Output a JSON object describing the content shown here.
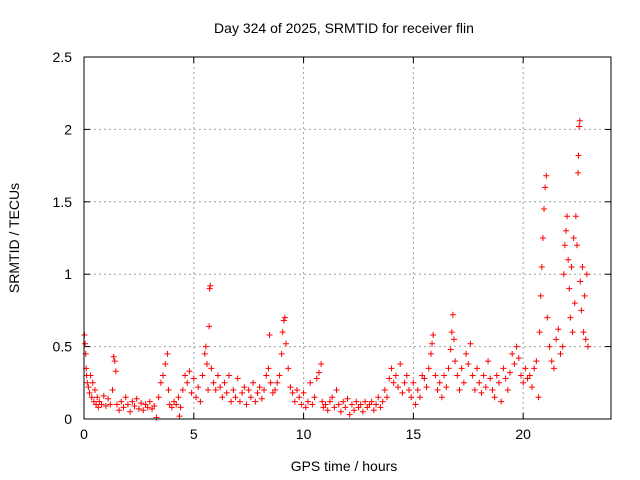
{
  "chart_data": {
    "type": "scatter",
    "title": "Day 324 of 2025, SRMTID for receiver flin",
    "xlabel": "GPS time / hours",
    "ylabel": "SRMTID / TECUs",
    "xlim": [
      0,
      24
    ],
    "ylim": [
      0,
      2.5
    ],
    "x_ticks": [
      {
        "value": 0,
        "label": "0"
      },
      {
        "value": 5,
        "label": "5"
      },
      {
        "value": 10,
        "label": "10"
      },
      {
        "value": 15,
        "label": "15"
      },
      {
        "value": 20,
        "label": "20"
      }
    ],
    "y_ticks": [
      {
        "value": 0,
        "label": "0"
      },
      {
        "value": 0.5,
        "label": "0.5"
      },
      {
        "value": 1,
        "label": "1"
      },
      {
        "value": 1.5,
        "label": "1.5"
      },
      {
        "value": 2,
        "label": "2"
      },
      {
        "value": 2.5,
        "label": "2.5"
      }
    ],
    "grid": true,
    "marker": "+",
    "color": "#ff0000",
    "series": [
      {
        "name": "SRMTID",
        "points": [
          [
            0.02,
            0.58
          ],
          [
            0.05,
            0.52
          ],
          [
            0.08,
            0.45
          ],
          [
            0.1,
            0.35
          ],
          [
            0.12,
            0.3
          ],
          [
            0.15,
            0.25
          ],
          [
            0.2,
            0.22
          ],
          [
            0.25,
            0.18
          ],
          [
            0.3,
            0.3
          ],
          [
            0.35,
            0.15
          ],
          [
            0.4,
            0.25
          ],
          [
            0.45,
            0.12
          ],
          [
            0.5,
            0.2
          ],
          [
            0.55,
            0.1
          ],
          [
            0.6,
            0.15
          ],
          [
            0.65,
            0.08
          ],
          [
            0.7,
            0.12
          ],
          [
            0.8,
            0.1
          ],
          [
            0.9,
            0.16
          ],
          [
            1.0,
            0.09
          ],
          [
            1.1,
            0.14
          ],
          [
            1.2,
            0.1
          ],
          [
            1.3,
            0.2
          ],
          [
            1.35,
            0.43
          ],
          [
            1.4,
            0.4
          ],
          [
            1.45,
            0.33
          ],
          [
            1.5,
            0.1
          ],
          [
            1.6,
            0.06
          ],
          [
            1.7,
            0.12
          ],
          [
            1.8,
            0.08
          ],
          [
            1.9,
            0.15
          ],
          [
            2.0,
            0.1
          ],
          [
            2.1,
            0.05
          ],
          [
            2.2,
            0.12
          ],
          [
            2.3,
            0.09
          ],
          [
            2.4,
            0.14
          ],
          [
            2.5,
            0.07
          ],
          [
            2.6,
            0.11
          ],
          [
            2.7,
            0.06
          ],
          [
            2.8,
            0.1
          ],
          [
            2.9,
            0.08
          ],
          [
            3.0,
            0.12
          ],
          [
            3.1,
            0.07
          ],
          [
            3.2,
            0.09
          ],
          [
            3.3,
            0.01
          ],
          [
            3.4,
            0.15
          ],
          [
            3.5,
            0.25
          ],
          [
            3.6,
            0.3
          ],
          [
            3.7,
            0.38
          ],
          [
            3.8,
            0.45
          ],
          [
            3.85,
            0.2
          ],
          [
            3.9,
            0.1
          ],
          [
            4.0,
            0.08
          ],
          [
            4.1,
            0.12
          ],
          [
            4.2,
            0.1
          ],
          [
            4.3,
            0.15
          ],
          [
            4.35,
            0.02
          ],
          [
            4.4,
            0.08
          ],
          [
            4.5,
            0.2
          ],
          [
            4.6,
            0.3
          ],
          [
            4.7,
            0.25
          ],
          [
            4.8,
            0.33
          ],
          [
            4.9,
            0.18
          ],
          [
            5.0,
            0.28
          ],
          [
            5.1,
            0.15
          ],
          [
            5.2,
            0.22
          ],
          [
            5.3,
            0.12
          ],
          [
            5.4,
            0.3
          ],
          [
            5.5,
            0.45
          ],
          [
            5.55,
            0.5
          ],
          [
            5.6,
            0.38
          ],
          [
            5.65,
            0.2
          ],
          [
            5.7,
            0.64
          ],
          [
            5.72,
            0.9
          ],
          [
            5.75,
            0.92
          ],
          [
            5.8,
            0.35
          ],
          [
            5.9,
            0.25
          ],
          [
            6.0,
            0.2
          ],
          [
            6.1,
            0.3
          ],
          [
            6.2,
            0.22
          ],
          [
            6.3,
            0.15
          ],
          [
            6.4,
            0.25
          ],
          [
            6.5,
            0.18
          ],
          [
            6.6,
            0.3
          ],
          [
            6.7,
            0.12
          ],
          [
            6.8,
            0.2
          ],
          [
            6.9,
            0.15
          ],
          [
            7.0,
            0.28
          ],
          [
            7.1,
            0.12
          ],
          [
            7.2,
            0.18
          ],
          [
            7.3,
            0.22
          ],
          [
            7.4,
            0.1
          ],
          [
            7.5,
            0.2
          ],
          [
            7.6,
            0.15
          ],
          [
            7.7,
            0.25
          ],
          [
            7.8,
            0.12
          ],
          [
            7.9,
            0.18
          ],
          [
            8.0,
            0.22
          ],
          [
            8.1,
            0.14
          ],
          [
            8.2,
            0.2
          ],
          [
            8.3,
            0.3
          ],
          [
            8.4,
            0.35
          ],
          [
            8.45,
            0.58
          ],
          [
            8.5,
            0.25
          ],
          [
            8.6,
            0.18
          ],
          [
            8.7,
            0.2
          ],
          [
            8.8,
            0.25
          ],
          [
            8.9,
            0.3
          ],
          [
            9.0,
            0.45
          ],
          [
            9.05,
            0.6
          ],
          [
            9.1,
            0.68
          ],
          [
            9.15,
            0.7
          ],
          [
            9.2,
            0.52
          ],
          [
            9.3,
            0.35
          ],
          [
            9.4,
            0.22
          ],
          [
            9.5,
            0.18
          ],
          [
            9.6,
            0.12
          ],
          [
            9.7,
            0.2
          ],
          [
            9.8,
            0.15
          ],
          [
            9.9,
            0.1
          ],
          [
            10.0,
            0.18
          ],
          [
            10.1,
            0.08
          ],
          [
            10.2,
            0.12
          ],
          [
            10.3,
            0.25
          ],
          [
            10.4,
            0.1
          ],
          [
            10.5,
            0.15
          ],
          [
            10.6,
            0.28
          ],
          [
            10.7,
            0.32
          ],
          [
            10.8,
            0.38
          ],
          [
            10.85,
            0.12
          ],
          [
            10.9,
            0.08
          ],
          [
            11.0,
            0.1
          ],
          [
            11.1,
            0.06
          ],
          [
            11.2,
            0.12
          ],
          [
            11.3,
            0.15
          ],
          [
            11.4,
            0.08
          ],
          [
            11.5,
            0.2
          ],
          [
            11.6,
            0.1
          ],
          [
            11.7,
            0.05
          ],
          [
            11.8,
            0.12
          ],
          [
            11.9,
            0.08
          ],
          [
            12.0,
            0.14
          ],
          [
            12.1,
            0.03
          ],
          [
            12.2,
            0.1
          ],
          [
            12.3,
            0.06
          ],
          [
            12.4,
            0.12
          ],
          [
            12.5,
            0.08
          ],
          [
            12.6,
            0.1
          ],
          [
            12.7,
            0.05
          ],
          [
            12.8,
            0.12
          ],
          [
            12.9,
            0.08
          ],
          [
            13.0,
            0.1
          ],
          [
            13.1,
            0.12
          ],
          [
            13.2,
            0.06
          ],
          [
            13.3,
            0.1
          ],
          [
            13.4,
            0.15
          ],
          [
            13.5,
            0.08
          ],
          [
            13.6,
            0.12
          ],
          [
            13.7,
            0.2
          ],
          [
            13.8,
            0.15
          ],
          [
            13.9,
            0.28
          ],
          [
            14.0,
            0.35
          ],
          [
            14.1,
            0.25
          ],
          [
            14.2,
            0.3
          ],
          [
            14.3,
            0.22
          ],
          [
            14.4,
            0.38
          ],
          [
            14.5,
            0.18
          ],
          [
            14.6,
            0.25
          ],
          [
            14.7,
            0.3
          ],
          [
            14.8,
            0.2
          ],
          [
            14.9,
            0.15
          ],
          [
            15.0,
            0.25
          ],
          [
            15.1,
            0.1
          ],
          [
            15.2,
            0.2
          ],
          [
            15.3,
            0.15
          ],
          [
            15.4,
            0.3
          ],
          [
            15.5,
            0.28
          ],
          [
            15.6,
            0.22
          ],
          [
            15.7,
            0.35
          ],
          [
            15.8,
            0.45
          ],
          [
            15.85,
            0.52
          ],
          [
            15.9,
            0.58
          ],
          [
            16.0,
            0.3
          ],
          [
            16.1,
            0.2
          ],
          [
            16.2,
            0.25
          ],
          [
            16.3,
            0.15
          ],
          [
            16.4,
            0.3
          ],
          [
            16.5,
            0.22
          ],
          [
            16.6,
            0.35
          ],
          [
            16.7,
            0.48
          ],
          [
            16.75,
            0.6
          ],
          [
            16.8,
            0.72
          ],
          [
            16.85,
            0.55
          ],
          [
            16.9,
            0.4
          ],
          [
            17.0,
            0.3
          ],
          [
            17.1,
            0.2
          ],
          [
            17.2,
            0.35
          ],
          [
            17.3,
            0.25
          ],
          [
            17.4,
            0.45
          ],
          [
            17.5,
            0.38
          ],
          [
            17.6,
            0.52
          ],
          [
            17.7,
            0.3
          ],
          [
            17.8,
            0.2
          ],
          [
            17.9,
            0.35
          ],
          [
            18.0,
            0.25
          ],
          [
            18.1,
            0.18
          ],
          [
            18.2,
            0.3
          ],
          [
            18.3,
            0.22
          ],
          [
            18.4,
            0.4
          ],
          [
            18.5,
            0.28
          ],
          [
            18.6,
            0.2
          ],
          [
            18.7,
            0.15
          ],
          [
            18.8,
            0.3
          ],
          [
            18.9,
            0.25
          ],
          [
            19.0,
            0.12
          ],
          [
            19.1,
            0.35
          ],
          [
            19.2,
            0.28
          ],
          [
            19.3,
            0.2
          ],
          [
            19.4,
            0.32
          ],
          [
            19.5,
            0.45
          ],
          [
            19.6,
            0.38
          ],
          [
            19.7,
            0.5
          ],
          [
            19.8,
            0.42
          ],
          [
            19.9,
            0.3
          ],
          [
            20.0,
            0.25
          ],
          [
            20.1,
            0.35
          ],
          [
            20.2,
            0.28
          ],
          [
            20.3,
            0.3
          ],
          [
            20.4,
            0.22
          ],
          [
            20.5,
            0.35
          ],
          [
            20.6,
            0.4
          ],
          [
            20.7,
            0.15
          ],
          [
            20.75,
            0.6
          ],
          [
            20.8,
            0.85
          ],
          [
            20.85,
            1.05
          ],
          [
            20.9,
            1.25
          ],
          [
            20.95,
            1.45
          ],
          [
            21.0,
            1.6
          ],
          [
            21.05,
            1.68
          ],
          [
            21.1,
            0.7
          ],
          [
            21.2,
            0.5
          ],
          [
            21.3,
            0.4
          ],
          [
            21.4,
            0.35
          ],
          [
            21.5,
            0.55
          ],
          [
            21.6,
            0.62
          ],
          [
            21.7,
            0.45
          ],
          [
            21.8,
            0.5
          ],
          [
            21.85,
            1.0
          ],
          [
            21.9,
            1.2
          ],
          [
            21.95,
            1.3
          ],
          [
            22.0,
            1.4
          ],
          [
            22.05,
            1.1
          ],
          [
            22.1,
            0.9
          ],
          [
            22.15,
            0.7
          ],
          [
            22.2,
            1.05
          ],
          [
            22.25,
            0.6
          ],
          [
            22.3,
            1.25
          ],
          [
            22.35,
            0.8
          ],
          [
            22.4,
            1.4
          ],
          [
            22.45,
            1.2
          ],
          [
            22.5,
            1.7
          ],
          [
            22.52,
            1.82
          ],
          [
            22.55,
            2.02
          ],
          [
            22.58,
            2.06
          ],
          [
            22.6,
            0.95
          ],
          [
            22.65,
            0.75
          ],
          [
            22.7,
            1.05
          ],
          [
            22.75,
            0.6
          ],
          [
            22.8,
            0.85
          ],
          [
            22.85,
            0.55
          ],
          [
            22.9,
            1.0
          ],
          [
            22.95,
            0.5
          ]
        ]
      }
    ]
  }
}
